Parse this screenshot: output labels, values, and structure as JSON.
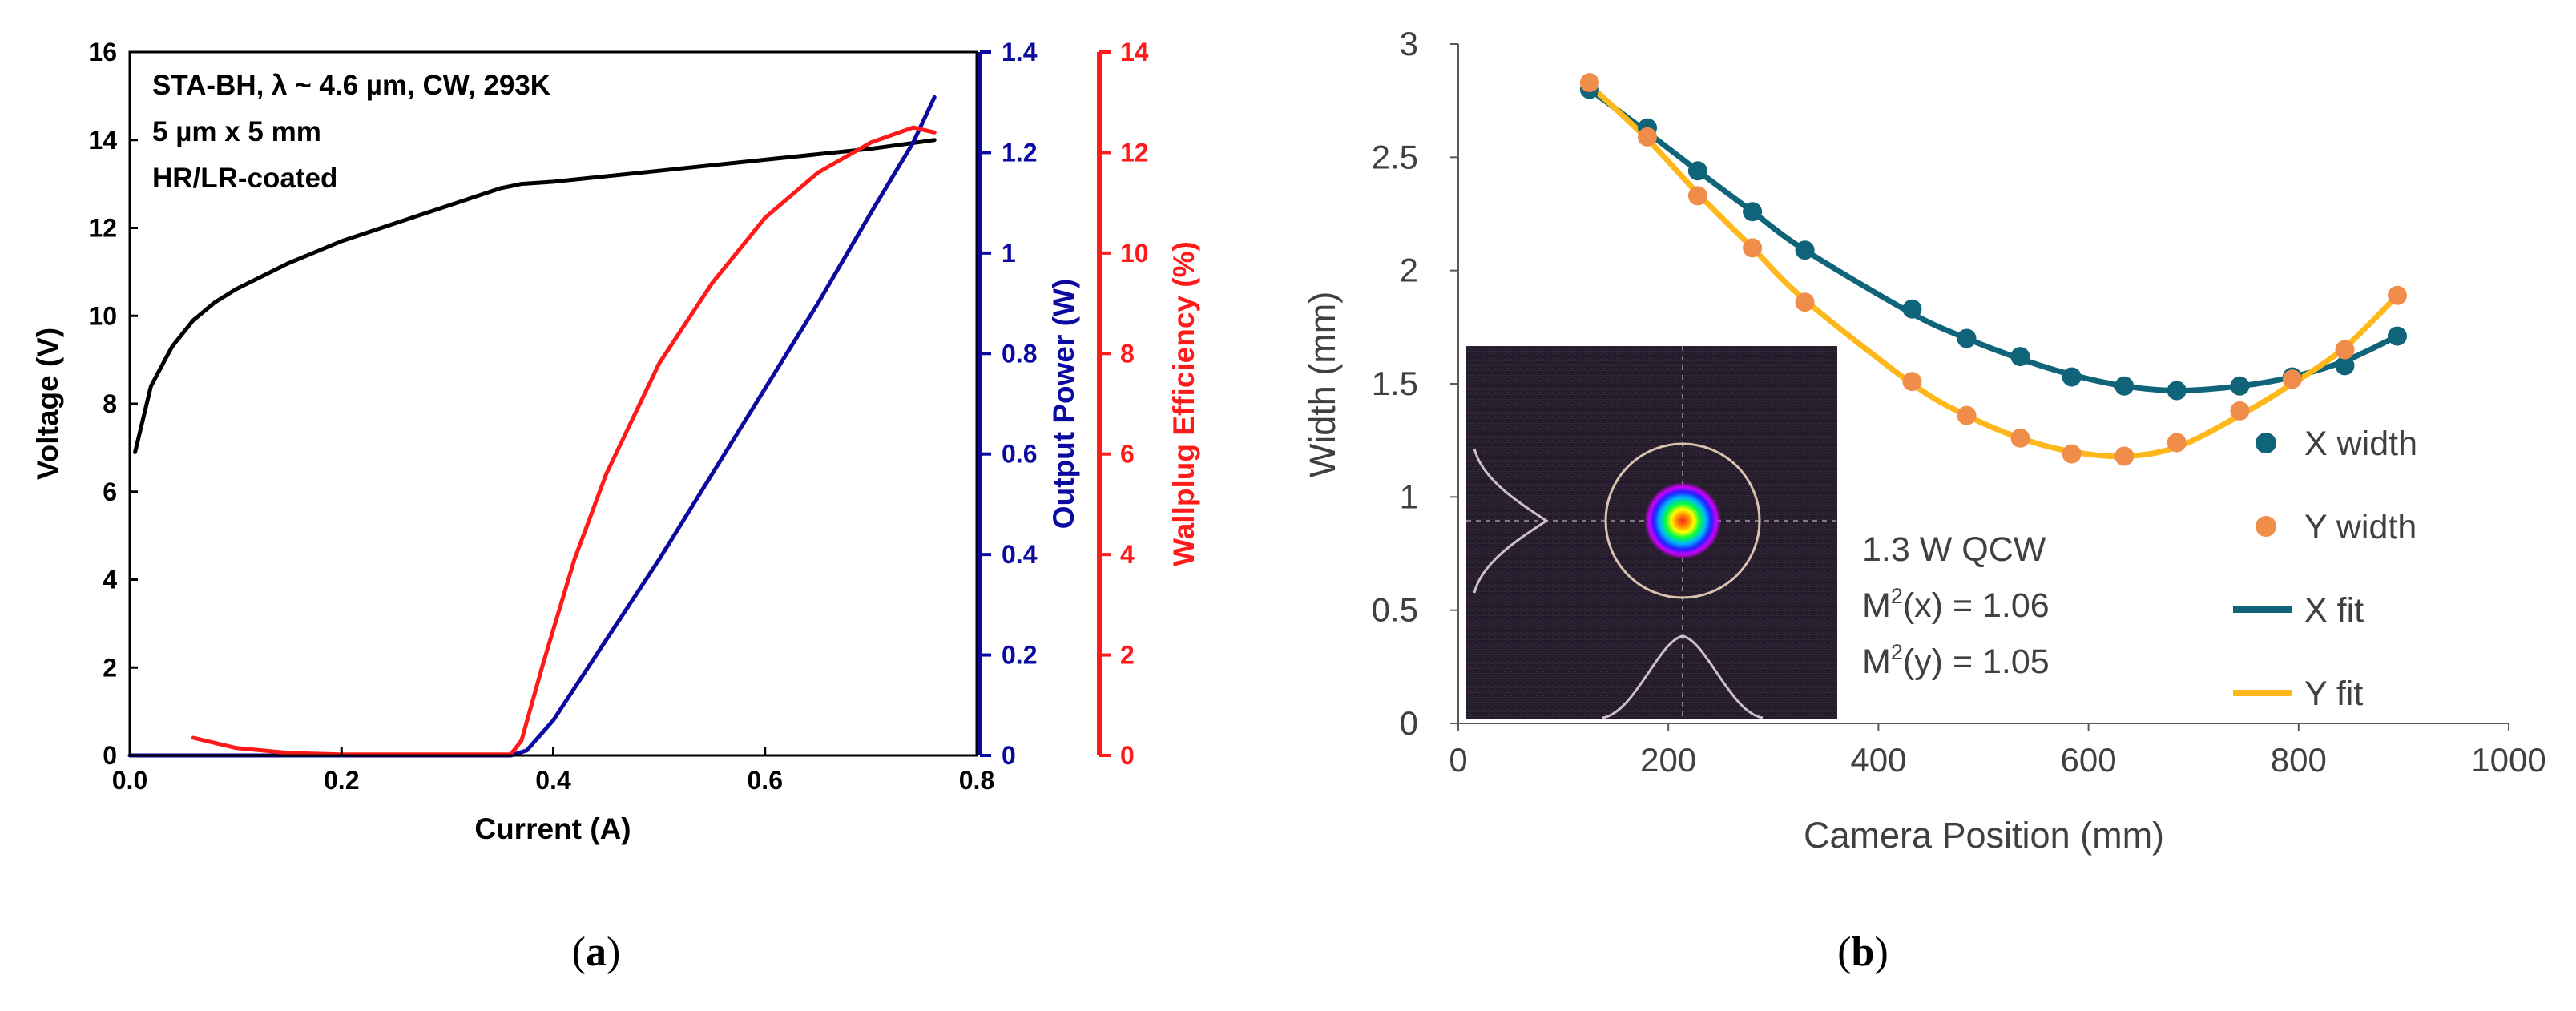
{
  "colors": {
    "voltage": "#000000",
    "power": "#0a0aa0",
    "efficiency": "#ff1a1a",
    "x_series": "#0f6479",
    "y_series": "#f08d4a",
    "y_fit": "#ffb81c",
    "axis_b": "#595959",
    "text_b": "#404040",
    "beam_bg": "#251b2c"
  },
  "panels": {
    "a": {
      "caption_open": "(",
      "caption_letter": "a",
      "caption_close": ")",
      "annotation": [
        "STA-BH, λ ~ 4.6 µm, CW, 293K",
        "5 µm x 5 mm",
        "HR/LR-coated"
      ]
    },
    "b": {
      "caption_open": "(",
      "caption_letter": "b",
      "caption_close": ")",
      "annotation": {
        "line1": "1.3 W QCW",
        "line2_prefix": "M",
        "line2_sup": "2",
        "line2_suffix": "(x) = 1.06",
        "line3_prefix": "M",
        "line3_sup": "2",
        "line3_suffix": "(y) = 1.05"
      },
      "inset_icon": "beam-profile-image"
    }
  },
  "chart_data": [
    {
      "type": "line",
      "panel": "a",
      "xlabel": "Current (A)",
      "xlim": [
        0.0,
        0.8
      ],
      "xticks": [
        "0.0",
        "0.2",
        "0.4",
        "0.6",
        "0.8"
      ],
      "axes": {
        "left": {
          "label": "Voltage (V)",
          "range": [
            0,
            16
          ],
          "ticks": [
            "0",
            "2",
            "4",
            "6",
            "8",
            "10",
            "12",
            "14",
            "16"
          ]
        },
        "right1": {
          "label": "Output Power (W)",
          "range": [
            0,
            1.4
          ],
          "ticks": [
            "0",
            "0.2",
            "0.4",
            "0.6",
            "0.8",
            "1",
            "1.2",
            "1.4"
          ]
        },
        "right2": {
          "label": "Wallplug Efficiency (%)",
          "range": [
            0,
            14
          ],
          "ticks": [
            "0",
            "2",
            "4",
            "6",
            "8",
            "10",
            "12",
            "14"
          ]
        }
      },
      "series": [
        {
          "name": "Voltage",
          "axis": "left",
          "x": [
            0.005,
            0.02,
            0.04,
            0.06,
            0.08,
            0.1,
            0.15,
            0.2,
            0.25,
            0.3,
            0.35,
            0.37,
            0.4,
            0.5,
            0.6,
            0.7,
            0.76
          ],
          "y": [
            6.9,
            8.4,
            9.3,
            9.9,
            10.3,
            10.6,
            11.2,
            11.7,
            12.1,
            12.5,
            12.9,
            13.0,
            13.05,
            13.3,
            13.55,
            13.8,
            14.0
          ]
        },
        {
          "name": "Output Power",
          "axis": "right1",
          "x": [
            0.0,
            0.36,
            0.375,
            0.4,
            0.45,
            0.5,
            0.55,
            0.6,
            0.65,
            0.7,
            0.74,
            0.76
          ],
          "y": [
            0.0,
            0.0,
            0.01,
            0.07,
            0.23,
            0.39,
            0.56,
            0.73,
            0.9,
            1.08,
            1.22,
            1.31
          ]
        },
        {
          "name": "Wallplug Efficiency",
          "axis": "right2",
          "x": [
            0.06,
            0.1,
            0.15,
            0.2,
            0.3,
            0.36,
            0.37,
            0.39,
            0.42,
            0.45,
            0.5,
            0.55,
            0.6,
            0.65,
            0.7,
            0.74,
            0.76
          ],
          "y": [
            0.35,
            0.15,
            0.05,
            0.02,
            0.02,
            0.02,
            0.3,
            1.8,
            3.9,
            5.6,
            7.8,
            9.4,
            10.7,
            11.6,
            12.2,
            12.5,
            12.4
          ]
        }
      ]
    },
    {
      "type": "scatter",
      "panel": "b",
      "xlabel": "Camera Position (mm)",
      "ylabel": "Width (mm)",
      "xlim": [
        0,
        1000
      ],
      "ylim": [
        0,
        3
      ],
      "xticks": [
        "0",
        "200",
        "400",
        "600",
        "800",
        "1000"
      ],
      "yticks": [
        "0",
        "0.5",
        "1",
        "1.5",
        "2",
        "2.5",
        "3"
      ],
      "legend_position": "right",
      "series": [
        {
          "name": "X width",
          "kind": "points",
          "x": [
            125,
            180,
            228,
            280,
            330,
            432,
            484,
            535,
            584,
            634,
            684,
            744,
            794,
            844,
            894
          ],
          "y": [
            2.8,
            2.63,
            2.44,
            2.26,
            2.09,
            1.83,
            1.7,
            1.62,
            1.53,
            1.49,
            1.47,
            1.49,
            1.53,
            1.58,
            1.71
          ]
        },
        {
          "name": "Y width",
          "kind": "points",
          "x": [
            125,
            180,
            228,
            280,
            330,
            432,
            484,
            535,
            584,
            634,
            684,
            744,
            794,
            844,
            894
          ],
          "y": [
            2.83,
            2.59,
            2.33,
            2.1,
            1.86,
            1.51,
            1.36,
            1.26,
            1.19,
            1.18,
            1.24,
            1.38,
            1.52,
            1.65,
            1.89
          ]
        },
        {
          "name": "X fit",
          "kind": "line",
          "x": [
            125,
            180,
            228,
            280,
            330,
            432,
            484,
            535,
            584,
            634,
            684,
            744,
            794,
            844,
            894
          ],
          "y": [
            2.8,
            2.61,
            2.44,
            2.26,
            2.09,
            1.81,
            1.7,
            1.61,
            1.54,
            1.49,
            1.47,
            1.49,
            1.53,
            1.6,
            1.71
          ]
        },
        {
          "name": "Y fit",
          "kind": "line",
          "x": [
            125,
            180,
            228,
            280,
            330,
            432,
            484,
            535,
            584,
            634,
            684,
            744,
            794,
            844,
            894
          ],
          "y": [
            2.82,
            2.58,
            2.34,
            2.1,
            1.87,
            1.5,
            1.36,
            1.26,
            1.2,
            1.18,
            1.22,
            1.36,
            1.5,
            1.66,
            1.89
          ]
        }
      ]
    }
  ]
}
